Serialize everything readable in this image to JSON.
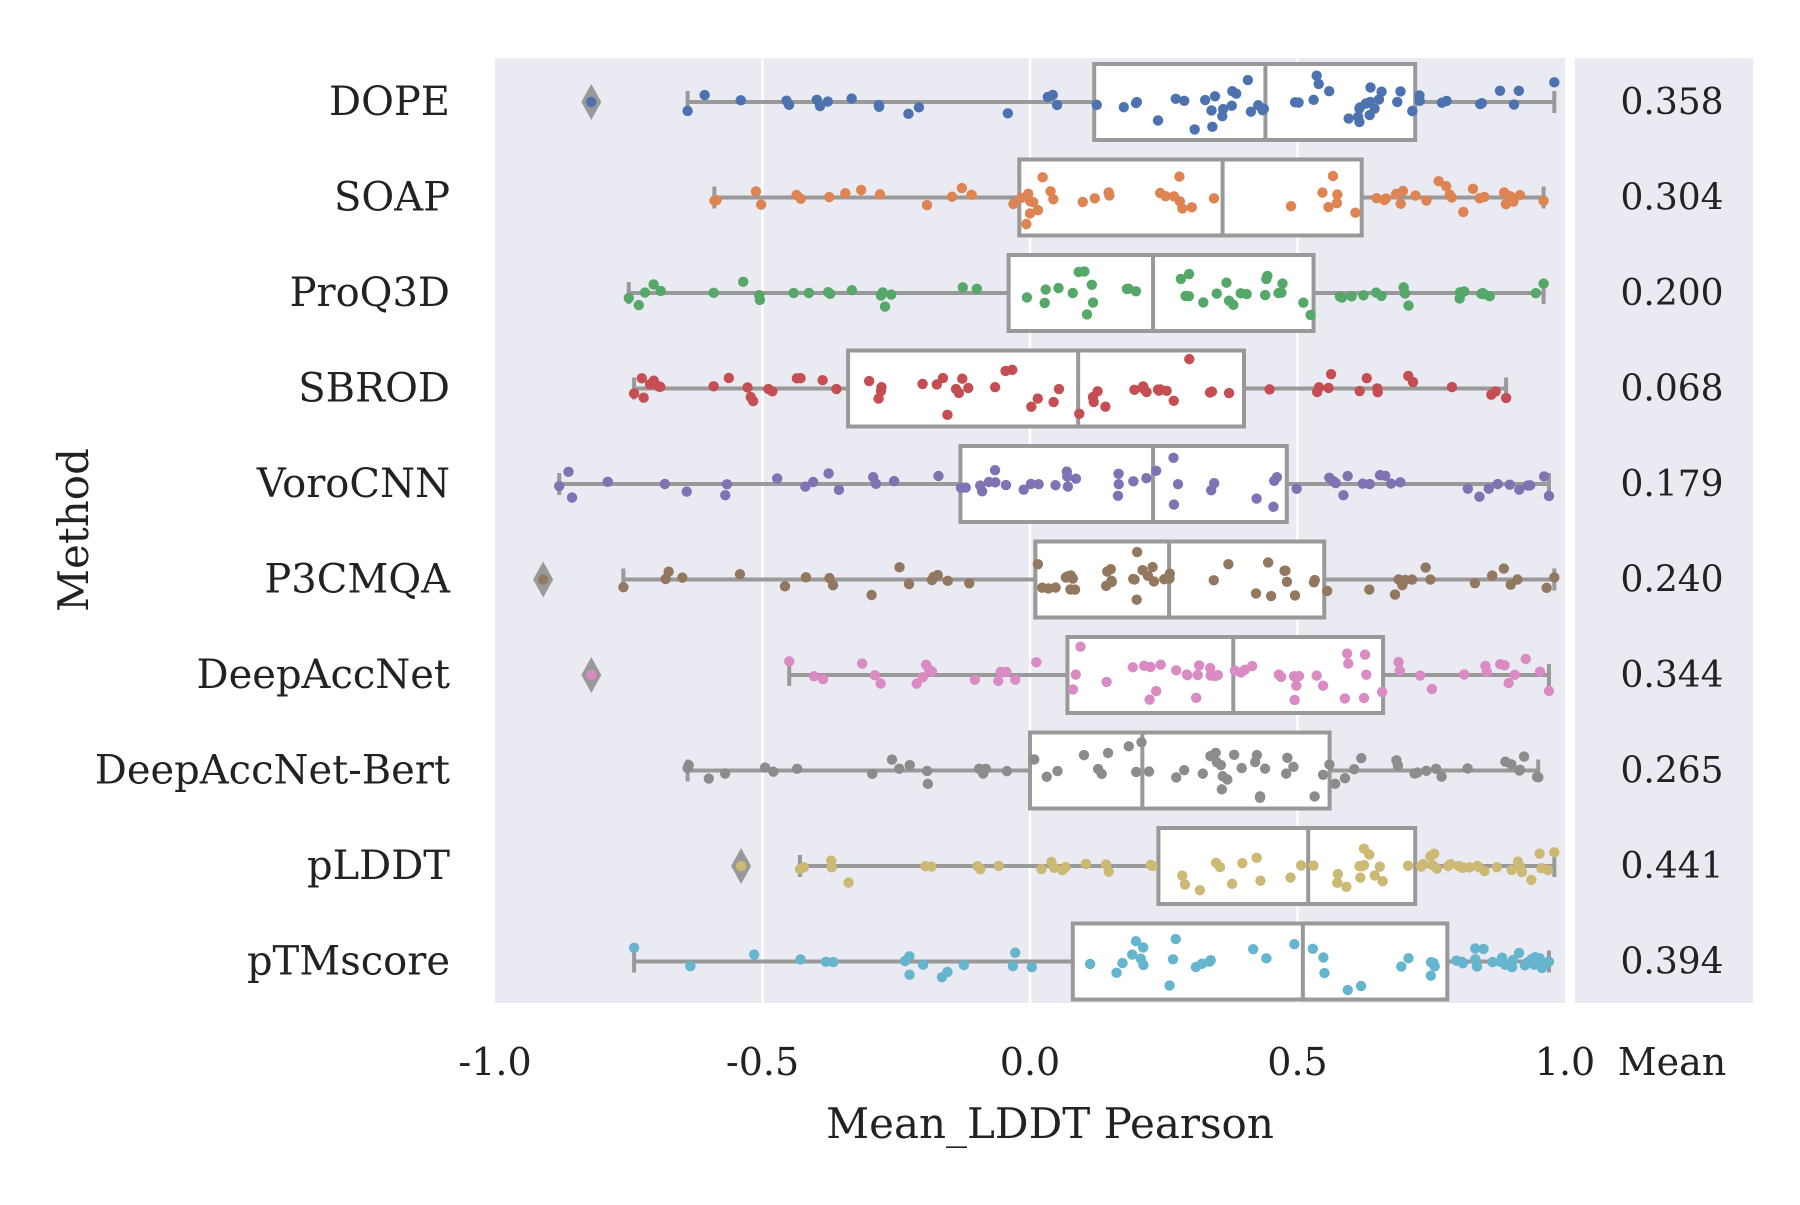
{
  "chart_data": {
    "type": "box",
    "xlabel": "Mean_LDDT Pearson",
    "ylabel": "Method",
    "xlim": [
      -1.0,
      1.0
    ],
    "x_ticks": [
      "-1.0",
      "-0.5",
      "0.0",
      "0.5",
      "1.0"
    ],
    "mean_header": "Mean",
    "grid": "vertical",
    "background": "#eaeaf2",
    "box_edge_color": "#999999",
    "series": [
      {
        "name": "DOPE",
        "color": "#4c72b0",
        "whisker_low": -0.64,
        "q1": 0.12,
        "median": 0.44,
        "q3": 0.72,
        "whisker_high": 0.98,
        "outliers": [
          -0.82
        ],
        "mean": "0.358"
      },
      {
        "name": "SOAP",
        "color": "#dd8452",
        "whisker_low": -0.59,
        "q1": -0.02,
        "median": 0.36,
        "q3": 0.62,
        "whisker_high": 0.96,
        "outliers": [],
        "mean": "0.304"
      },
      {
        "name": "ProQ3D",
        "color": "#55a868",
        "whisker_low": -0.75,
        "q1": -0.04,
        "median": 0.23,
        "q3": 0.53,
        "whisker_high": 0.96,
        "outliers": [],
        "mean": "0.200"
      },
      {
        "name": "SBROD",
        "color": "#c44e52",
        "whisker_low": -0.74,
        "q1": -0.34,
        "median": 0.09,
        "q3": 0.4,
        "whisker_high": 0.89,
        "outliers": [],
        "mean": "0.068"
      },
      {
        "name": "VoroCNN",
        "color": "#8172b3",
        "whisker_low": -0.88,
        "q1": -0.13,
        "median": 0.23,
        "q3": 0.48,
        "whisker_high": 0.97,
        "outliers": [],
        "mean": "0.179"
      },
      {
        "name": "P3CMQA",
        "color": "#937860",
        "whisker_low": -0.76,
        "q1": 0.01,
        "median": 0.26,
        "q3": 0.55,
        "whisker_high": 0.98,
        "outliers": [
          -0.91
        ],
        "mean": "0.240"
      },
      {
        "name": "DeepAccNet",
        "color": "#da8bc3",
        "whisker_low": -0.45,
        "q1": 0.07,
        "median": 0.38,
        "q3": 0.66,
        "whisker_high": 0.97,
        "outliers": [
          -0.82
        ],
        "mean": "0.344"
      },
      {
        "name": "DeepAccNet-Bert",
        "color": "#8c8c8c",
        "whisker_low": -0.64,
        "q1": 0.0,
        "median": 0.21,
        "q3": 0.56,
        "whisker_high": 0.95,
        "outliers": [],
        "mean": "0.265"
      },
      {
        "name": "pLDDT",
        "color": "#ccb974",
        "whisker_low": -0.43,
        "q1": 0.24,
        "median": 0.52,
        "q3": 0.72,
        "whisker_high": 0.98,
        "outliers": [
          -0.54
        ],
        "mean": "0.441"
      },
      {
        "name": "pTMscore",
        "color": "#64b5cd",
        "whisker_low": -0.74,
        "q1": 0.08,
        "median": 0.51,
        "q3": 0.78,
        "whisker_high": 0.97,
        "outliers": [],
        "mean": "0.394"
      }
    ]
  }
}
